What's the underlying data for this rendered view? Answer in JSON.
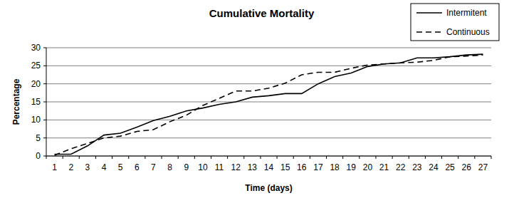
{
  "chart_data": {
    "type": "line",
    "title": "Cumulative Mortality",
    "x_label": "Time (days)",
    "y_label": "Percentage",
    "categories": [
      "1",
      "2",
      "3",
      "4",
      "5",
      "6",
      "7",
      "8",
      "9",
      "10",
      "11",
      "12",
      "13",
      "14",
      "15",
      "16",
      "17",
      "18",
      "19",
      "20",
      "21",
      "22",
      "23",
      "24",
      "25",
      "26",
      "27"
    ],
    "series": [
      {
        "name": "Intermitent",
        "color": "#000000",
        "line_style": "solid",
        "values": [
          0.5,
          0.5,
          2.8,
          5.8,
          6.3,
          8,
          9.8,
          11,
          12.5,
          13.3,
          14.3,
          15,
          16.3,
          16.7,
          17.3,
          17.3,
          20,
          22,
          23,
          24.8,
          25.5,
          25.8,
          27.2,
          27.2,
          27.5,
          28,
          28.2
        ]
      },
      {
        "name": "Continuous",
        "color": "#000000",
        "line_style": "dashed",
        "values": [
          0.2,
          2,
          3.5,
          5,
          5.5,
          6.8,
          7.3,
          9.5,
          11.3,
          14,
          16,
          18,
          18,
          18.8,
          20.2,
          22.5,
          23.2,
          23.2,
          24.3,
          25.2,
          25.5,
          25.8,
          26,
          26.5,
          27.5,
          27.7,
          28
        ]
      }
    ],
    "ylim": [
      0,
      30
    ],
    "yticks": [
      0,
      5,
      10,
      15,
      20,
      25,
      30
    ],
    "grid": true,
    "legend": "top-right"
  }
}
